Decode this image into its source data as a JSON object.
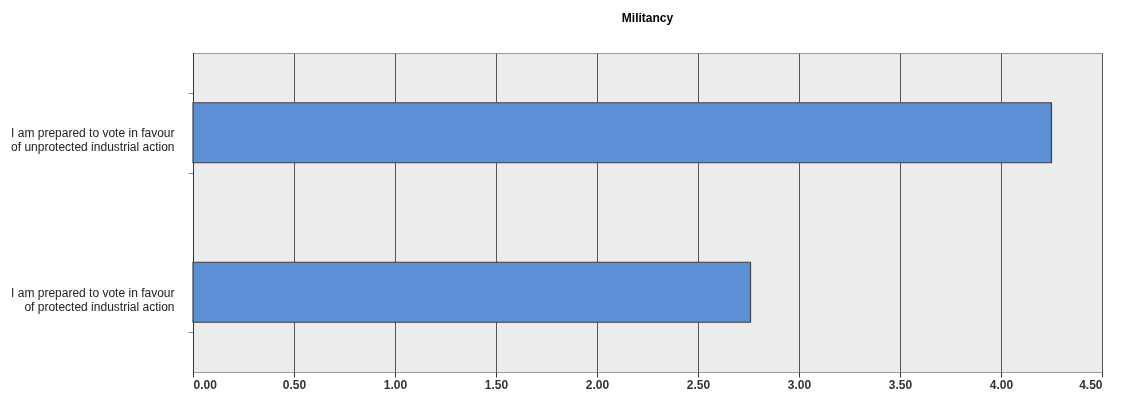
{
  "chart_data": {
    "type": "bar",
    "orientation": "horizontal",
    "title": "Militancy",
    "categories": [
      "I am prepared to vote in favour of unprotected industrial action",
      "I am prepared to vote in favour of protected industrial action"
    ],
    "values": [
      4.25,
      2.76
    ],
    "colors": [
      "#5b8fd6",
      "#5b8fd6"
    ],
    "xlim": [
      0,
      4.5
    ],
    "xticks": [
      {
        "value": 0,
        "label": "0.00"
      },
      {
        "value": 0.5,
        "label": "0.50"
      },
      {
        "value": 1,
        "label": "1.00"
      },
      {
        "value": 1.5,
        "label": "1.50"
      },
      {
        "value": 2,
        "label": "2.00"
      },
      {
        "value": 2.5,
        "label": "2.50"
      },
      {
        "value": 3,
        "label": "3.00"
      },
      {
        "value": 3.5,
        "label": "3.50"
      },
      {
        "value": 4,
        "label": "4.00"
      },
      {
        "value": 4.5,
        "label": "4.50"
      }
    ],
    "grid": "x"
  }
}
